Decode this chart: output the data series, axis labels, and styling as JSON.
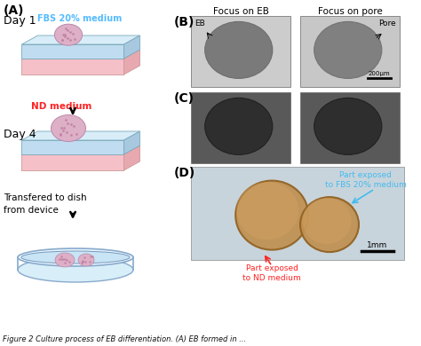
{
  "title_A": "(A)",
  "title_B": "(B)",
  "title_C": "(C)",
  "title_D": "(D)",
  "day1_label": "Day 1",
  "day4_label": "Day 4",
  "fbs_label": "FBS 20% medium",
  "nd_label": "ND medium",
  "transfer_label": "Transfered to dish\nfrom device",
  "focus_eb_label": "Focus on EB",
  "focus_pore_label": "Focus on pore",
  "eb_annotation": "EB",
  "pore_annotation": "Pore",
  "scale_bar_b": "200μm",
  "scale_bar_d": "1mm",
  "part_fbs_label": "Part exposed\nto FBS 20% medium",
  "part_nd_label": "Part exposed\nto ND medium",
  "bg_color": "#ffffff",
  "fbs_text_color": "#55bbff",
  "nd_text_color": "#ff2222",
  "part_fbs_color": "#44bbee",
  "part_nd_color": "#ff2222",
  "box_blue_color": "#b8dff0",
  "box_pink_color": "#f5c8cc",
  "device_edge_color": "#88ccee",
  "cell_color": "#e0b8cc",
  "arrow_color": "#000000",
  "label_fontsize": 8,
  "title_fontsize": 9,
  "day_fontsize": 8,
  "caption": "Figure 2 Culture process of EB differentiation. (A) EB formed in ..."
}
